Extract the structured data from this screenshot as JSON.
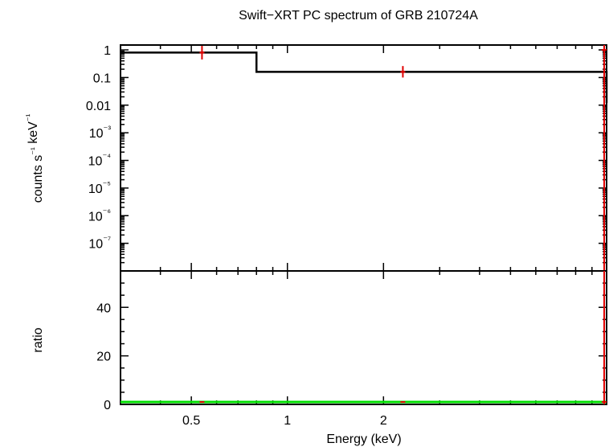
{
  "chart_data": {
    "type": "line",
    "title": "Swift−XRT PC spectrum of GRB 210724A",
    "xlabel": "Energy (keV)",
    "xscale": "log",
    "xlim": [
      0.3,
      10
    ],
    "xticks": [
      {
        "value": 0.5,
        "label": "0.5"
      },
      {
        "value": 1,
        "label": "1"
      },
      {
        "value": 2,
        "label": "2"
      }
    ],
    "panels": [
      {
        "id": "spectrum",
        "ylabel": "counts s⁻¹ keV⁻¹",
        "yscale": "log",
        "ylim": [
          1e-08,
          1.5
        ],
        "yticks": [
          {
            "value": 1,
            "label": "1"
          },
          {
            "value": 0.1,
            "label": "0.1"
          },
          {
            "value": 0.01,
            "label": "0.01"
          },
          {
            "value": 0.001,
            "label": "10⁻³"
          },
          {
            "value": 0.0001,
            "label": "10⁻⁴"
          },
          {
            "value": 1e-05,
            "label": "10⁻⁵"
          },
          {
            "value": 1e-06,
            "label": "10⁻⁶"
          },
          {
            "value": 1e-07,
            "label": "10⁻⁷"
          }
        ],
        "series": [
          {
            "kind": "model-step",
            "color": "#000000",
            "bins": [
              {
                "x0": 0.3,
                "x1": 0.8,
                "y": 0.8
              },
              {
                "x0": 0.8,
                "x1": 10.0,
                "y": 0.16
              },
              {
                "x0": 10.0,
                "x1": 10.2,
                "y": 0.012
              }
            ]
          },
          {
            "kind": "data-points",
            "color": "#e00000",
            "points": [
              {
                "x": 0.54,
                "y": 0.8,
                "ylo": 0.45,
                "yhi": 1.4
              },
              {
                "x": 2.3,
                "y": 0.16,
                "ylo": 0.1,
                "yhi": 0.26
              },
              {
                "x": 10.1,
                "y": 1.0,
                "ylo": 1e-08,
                "yhi": 1.5
              }
            ]
          }
        ]
      },
      {
        "id": "ratio",
        "ylabel": "ratio",
        "yscale": "linear",
        "ylim": [
          0,
          55
        ],
        "yticks": [
          {
            "value": 0,
            "label": "0"
          },
          {
            "value": 20,
            "label": "20"
          },
          {
            "value": 40,
            "label": "40"
          }
        ],
        "series": [
          {
            "kind": "reference-line",
            "color": "#00dd00",
            "y": 1
          },
          {
            "kind": "data-points",
            "color": "#e00000",
            "points": [
              {
                "x": 0.54,
                "y": 1.0,
                "ylo": 0.7,
                "yhi": 1.3
              },
              {
                "x": 2.3,
                "y": 1.0,
                "ylo": 0.7,
                "yhi": 1.3
              },
              {
                "x": 10.1,
                "y": 1.0,
                "ylo": 0,
                "yhi": 55
              }
            ]
          }
        ]
      }
    ]
  }
}
